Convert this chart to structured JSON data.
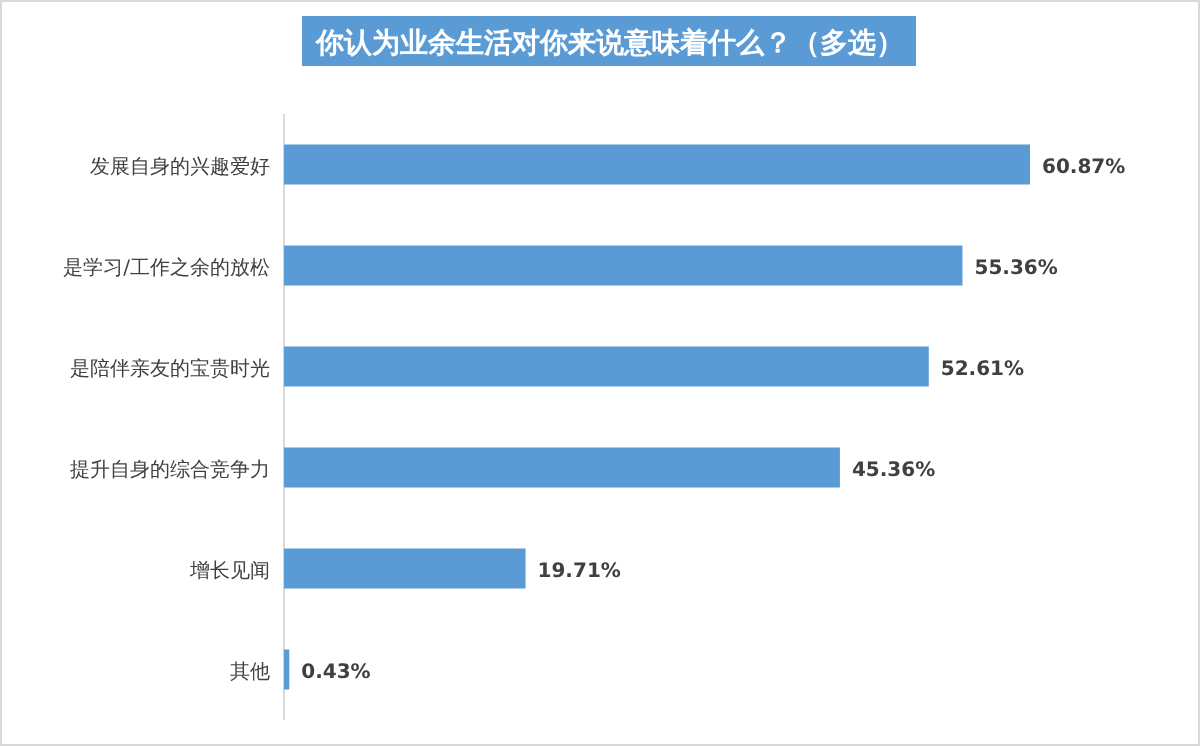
{
  "chart_data": {
    "type": "bar",
    "orientation": "horizontal",
    "title": "你认为业余生活对你来说意味着什么？（多选）",
    "categories": [
      "发展自身的兴趣爱好",
      "是学习/工作之余的放松",
      "是陪伴亲友的宝贵时光",
      "提升自身的综合竞争力",
      "增长见闻",
      "其他"
    ],
    "values": [
      60.87,
      55.36,
      52.61,
      45.36,
      19.71,
      0.43
    ],
    "value_labels": [
      "60.87%",
      "55.36%",
      "52.61%",
      "45.36%",
      "19.71%",
      "0.43%"
    ],
    "color": "#5b9bd5"
  }
}
